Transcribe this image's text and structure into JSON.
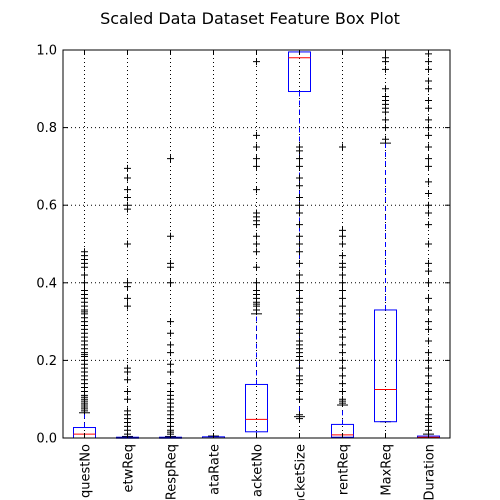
{
  "chart_data": {
    "type": "box",
    "title": "Scaled Data Dataset Feature Box Plot",
    "ylim": [
      0,
      1
    ],
    "yticks": [
      "0.0",
      "0.2",
      "0.4",
      "0.6",
      "0.8",
      "1.0"
    ],
    "grid": true,
    "colors": {
      "box": "#0000ff",
      "median": "#ff0000",
      "whisker": "#0000ff",
      "flier": "#000000",
      "grid": "#000000"
    },
    "categories": [
      "RequestNo",
      "NetwReq",
      "RespReq",
      "DataRate",
      "PacketNo",
      "PacketSize",
      "CurrentReq",
      "MaxReq",
      "Duration"
    ],
    "tick_labels": [
      "questNo",
      "etwReq",
      "RespReq",
      "ataRate",
      "acketNo",
      "acketSize",
      "rentReq",
      "MaxReq",
      "Duration"
    ],
    "boxes": [
      {
        "category": "RequestNo",
        "whislo": 0.0,
        "q1": 0.0,
        "med": 0.01,
        "q3": 0.027,
        "whishi": 0.065,
        "fliers": [
          0.07,
          0.075,
          0.08,
          0.085,
          0.09,
          0.095,
          0.1,
          0.105,
          0.11,
          0.12,
          0.13,
          0.14,
          0.15,
          0.16,
          0.17,
          0.18,
          0.19,
          0.2,
          0.21,
          0.215,
          0.22,
          0.23,
          0.24,
          0.25,
          0.26,
          0.27,
          0.28,
          0.29,
          0.3,
          0.31,
          0.32,
          0.325,
          0.33,
          0.34,
          0.35,
          0.36,
          0.37,
          0.38,
          0.4,
          0.42,
          0.44,
          0.45,
          0.46,
          0.47,
          0.48
        ]
      },
      {
        "category": "NetwReq",
        "whislo": 0.0,
        "q1": 0.0,
        "med": 0.0,
        "q3": 0.002,
        "whishi": 0.004,
        "fliers": [
          0.01,
          0.02,
          0.03,
          0.04,
          0.05,
          0.06,
          0.07,
          0.1,
          0.12,
          0.15,
          0.17,
          0.18,
          0.34,
          0.36,
          0.39,
          0.4,
          0.5,
          0.59,
          0.6,
          0.62,
          0.64,
          0.67,
          0.695
        ]
      },
      {
        "category": "RespReq",
        "whislo": 0.0,
        "q1": 0.0,
        "med": 0.0,
        "q3": 0.002,
        "whishi": 0.004,
        "fliers": [
          0.01,
          0.015,
          0.02,
          0.03,
          0.04,
          0.05,
          0.06,
          0.07,
          0.08,
          0.09,
          0.1,
          0.11,
          0.12,
          0.14,
          0.17,
          0.19,
          0.22,
          0.24,
          0.27,
          0.3,
          0.4,
          0.44,
          0.45,
          0.52,
          0.72
        ]
      },
      {
        "category": "DataRate",
        "whislo": 0.0,
        "q1": 0.0,
        "med": 0.0,
        "q3": 0.003,
        "whishi": 0.005,
        "fliers": []
      },
      {
        "category": "PacketNo",
        "whislo": 0.0,
        "q1": 0.016,
        "med": 0.048,
        "q3": 0.138,
        "whishi": 0.32,
        "fliers": [
          0.33,
          0.34,
          0.345,
          0.35,
          0.36,
          0.37,
          0.38,
          0.4,
          0.44,
          0.48,
          0.5,
          0.52,
          0.55,
          0.56,
          0.57,
          0.58,
          0.64,
          0.7,
          0.72,
          0.75,
          0.78,
          0.97
        ]
      },
      {
        "category": "PacketSize",
        "whislo": 0.055,
        "q1": 0.893,
        "med": 0.98,
        "q3": 0.995,
        "whishi": 1.0,
        "fliers": [
          0.05,
          0.06,
          0.1,
          0.12,
          0.14,
          0.15,
          0.16,
          0.18,
          0.2,
          0.21,
          0.22,
          0.23,
          0.24,
          0.25,
          0.27,
          0.28,
          0.3,
          0.32,
          0.33,
          0.35,
          0.36,
          0.38,
          0.4,
          0.42,
          0.45,
          0.48,
          0.5,
          0.52,
          0.55,
          0.58,
          0.6,
          0.62,
          0.65,
          0.67,
          0.7,
          0.72,
          0.74,
          0.75
        ]
      },
      {
        "category": "CurrentReq",
        "whislo": 0.0,
        "q1": 0.002,
        "med": 0.008,
        "q3": 0.035,
        "whishi": 0.085,
        "fliers": [
          0.09,
          0.095,
          0.1,
          0.12,
          0.14,
          0.16,
          0.18,
          0.2,
          0.22,
          0.24,
          0.26,
          0.28,
          0.3,
          0.32,
          0.34,
          0.36,
          0.38,
          0.4,
          0.42,
          0.44,
          0.45,
          0.47,
          0.5,
          0.52,
          0.535,
          0.75
        ]
      },
      {
        "category": "MaxReq",
        "whislo": 0.042,
        "q1": 0.042,
        "med": 0.125,
        "q3": 0.33,
        "whishi": 0.76,
        "fliers": [
          0.77,
          0.8,
          0.82,
          0.84,
          0.85,
          0.86,
          0.87,
          0.88,
          0.9,
          0.95,
          0.97,
          0.98
        ]
      },
      {
        "category": "Duration",
        "whislo": 0.0,
        "q1": 0.0,
        "med": 0.002,
        "q3": 0.005,
        "whishi": 0.01,
        "fliers": [
          0.02,
          0.03,
          0.04,
          0.05,
          0.06,
          0.08,
          0.1,
          0.12,
          0.14,
          0.16,
          0.18,
          0.2,
          0.22,
          0.25,
          0.28,
          0.3,
          0.33,
          0.36,
          0.4,
          0.43,
          0.45,
          0.5,
          0.55,
          0.58,
          0.6,
          0.63,
          0.66,
          0.7,
          0.72,
          0.75,
          0.78,
          0.8,
          0.82,
          0.85,
          0.87,
          0.9,
          0.92,
          0.95,
          0.97,
          0.99
        ]
      }
    ]
  }
}
